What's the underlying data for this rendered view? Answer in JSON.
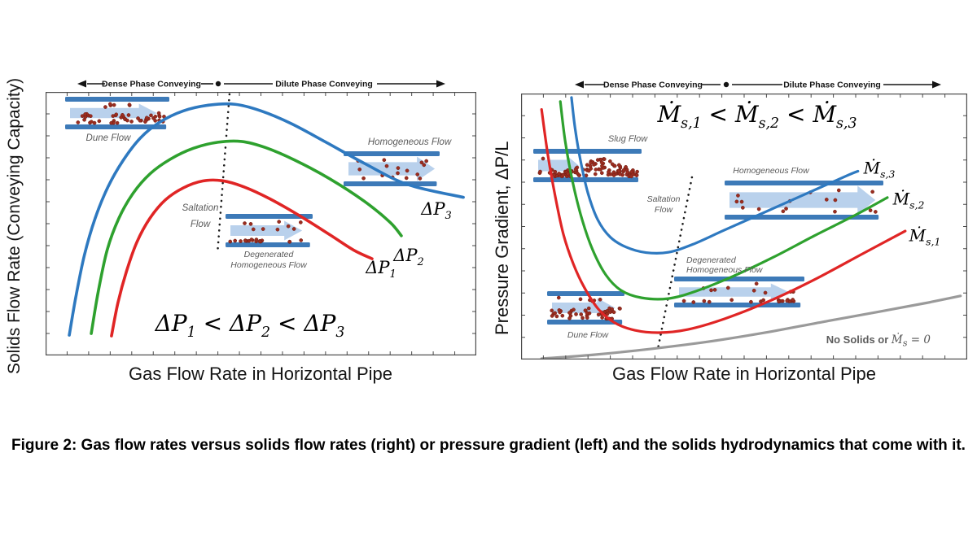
{
  "figure": {
    "caption": "Figure 2:  Gas flow rates versus solids flow rates (right) or pressure gradient (left) and the solids hydrodynamics that come with it."
  },
  "chart_data": [
    {
      "id": "left-solids-flow-rate-chart",
      "type": "line",
      "xlabel": "Gas Flow Rate in Horizontal Pipe",
      "ylabel": "Solids Flow Rate (Conveying Capacity)",
      "axis_style": "framed plot, short unlabeled tick marks on all four edges, qualitative axes (no numeric values)",
      "coords": "points are [x,y] normalized 0-100, y-up",
      "regions": {
        "left": "Dense Phase Conveying",
        "right": "Dilute Phase Conveying"
      },
      "annotation": "ΔP_{1} < ΔP_{2} < ΔP_{3}",
      "series": [
        {
          "name": "ΔP_{3}",
          "color": "#2e79c0",
          "points": [
            [
              5.5,
              7.7
            ],
            [
              7.0,
              22
            ],
            [
              9.0,
              38
            ],
            [
              11.5,
              52
            ],
            [
              14.5,
              64
            ],
            [
              18,
              74
            ],
            [
              22,
              82.5
            ],
            [
              26.5,
              88.5
            ],
            [
              32,
              92.8
            ],
            [
              38,
              95.0
            ],
            [
              44,
              95.3
            ],
            [
              50,
              92.8
            ],
            [
              57,
              88.0
            ],
            [
              65,
              81.0
            ],
            [
              74,
              72.9
            ],
            [
              84,
              64.9
            ],
            [
              97,
              60.0
            ]
          ]
        },
        {
          "name": "ΔP_{2}",
          "color": "#2ea12e",
          "points": [
            [
              10.6,
              8.3
            ],
            [
              12.2,
              24
            ],
            [
              14.3,
              40
            ],
            [
              17,
              52
            ],
            [
              20.3,
              61.5
            ],
            [
              24.3,
              69
            ],
            [
              29,
              74.5
            ],
            [
              34.3,
              78.6
            ],
            [
              40,
              80.9
            ],
            [
              45.5,
              81.2
            ],
            [
              51,
              78.9
            ],
            [
              58,
              74.0
            ],
            [
              66,
              67.0
            ],
            [
              74,
              58.5
            ],
            [
              80,
              50.5
            ],
            [
              82.6,
              45.4
            ]
          ]
        },
        {
          "name": "ΔP_{1}",
          "color": "#e02525",
          "points": [
            [
              15.3,
              7.4
            ],
            [
              16.8,
              20
            ],
            [
              18.8,
              32
            ],
            [
              21.2,
              43
            ],
            [
              24.2,
              52
            ],
            [
              27.8,
              59
            ],
            [
              32,
              63.6
            ],
            [
              36.5,
              66.2
            ],
            [
              41,
              66.3
            ],
            [
              46,
              64.0
            ],
            [
              52,
              59.5
            ],
            [
              59,
              53.0
            ],
            [
              66,
              45.8
            ],
            [
              71.5,
              40.0
            ],
            [
              75.8,
              36.7
            ]
          ]
        }
      ],
      "saltation_boundary": {
        "style": "dotted",
        "from": [
          42.7,
          99.1
        ],
        "to": [
          39.9,
          38.6
        ]
      },
      "labels": {
        "dune": "Dune Flow",
        "saltation_line1": "Saltation",
        "saltation_line2": "Flow",
        "degenerated_line1": "Degenerated",
        "degenerated_line2": "Homogeneous Flow",
        "homogeneous": "Homogeneous Flow"
      }
    },
    {
      "id": "right-pressure-gradient-chart",
      "type": "line",
      "xlabel": "Gas Flow Rate in Horizontal Pipe",
      "ylabel": "Pressure Gradient, ΔP/L",
      "axis_style": "framed plot, short unlabeled tick marks on all four edges, qualitative axes (no numeric values)",
      "coords": "points are [x,y] normalized 0-100, y-up",
      "regions": {
        "left": "Dense Phase Conveying",
        "right": "Dilute Phase Conveying"
      },
      "annotation": "Ṁ_{s,1} < Ṁ_{s,2} < Ṁ_{s,3}",
      "series": [
        {
          "name": "Ṁ_{s,3}",
          "color": "#2e79c0",
          "points": [
            [
              11.3,
              98.5
            ],
            [
              12.1,
              87
            ],
            [
              13.3,
              75
            ],
            [
              15.0,
              62.5
            ],
            [
              17.2,
              52.5
            ],
            [
              20,
              46
            ],
            [
              23.5,
              42.3
            ],
            [
              28,
              40.2
            ],
            [
              33,
              40.3
            ],
            [
              38.5,
              43.3
            ],
            [
              45.5,
              48.6
            ],
            [
              54.5,
              55.3
            ],
            [
              64,
              62.4
            ],
            [
              73,
              69.1
            ],
            [
              75.5,
              70.8
            ]
          ]
        },
        {
          "name": "Ṁ_{s,2}",
          "color": "#2ea12e",
          "points": [
            [
              8.8,
              97
            ],
            [
              9.9,
              82
            ],
            [
              11.6,
              66.5
            ],
            [
              13.7,
              52.5
            ],
            [
              16.1,
              41
            ],
            [
              19,
              31.8
            ],
            [
              22.4,
              26
            ],
            [
              27,
              23.2
            ],
            [
              33,
              22.9
            ],
            [
              39.2,
              25.7
            ],
            [
              47.4,
              31.2
            ],
            [
              56.6,
              38.5
            ],
            [
              65.7,
              46.5
            ],
            [
              74.8,
              54.2
            ],
            [
              82.1,
              60.9
            ]
          ]
        },
        {
          "name": "Ṁ_{s,1}",
          "color": "#e02525",
          "points": [
            [
              4.6,
              94
            ],
            [
              6.0,
              77
            ],
            [
              7.7,
              61
            ],
            [
              9.5,
              47
            ],
            [
              11.7,
              36
            ],
            [
              14.2,
              27
            ],
            [
              17.3,
              19
            ],
            [
              21,
              13.8
            ],
            [
              25.5,
              11
            ],
            [
              31,
              10.1
            ],
            [
              37.4,
              11.3
            ],
            [
              45.6,
              15.3
            ],
            [
              55.7,
              22
            ],
            [
              65.7,
              30
            ],
            [
              76.6,
              39.8
            ],
            [
              86.1,
              48.3
            ]
          ]
        },
        {
          "name": "No Solids or Ṁ_{s} = 0",
          "color": "#9a9a9a",
          "points": [
            [
              4.6,
              0.3
            ],
            [
              16.4,
              1.8
            ],
            [
              29.2,
              4
            ],
            [
              42,
              6.7
            ],
            [
              54.7,
              10.1
            ],
            [
              67.5,
              14.1
            ],
            [
              80.3,
              18
            ],
            [
              90.3,
              21.1
            ],
            [
              98.5,
              23.9
            ]
          ]
        }
      ],
      "saltation_boundary": {
        "style": "dotted",
        "from": [
          38.3,
          68.5
        ],
        "to": [
          30.7,
          4.3
        ]
      },
      "labels": {
        "slug": "Slug Flow",
        "saltation_line1": "Saltation",
        "saltation_line2": "Flow",
        "degenerated_line1": "Degenerated",
        "degenerated_line2": "Homogeneous Flow",
        "homogeneous": "Homogeneous Flow",
        "dune": "Dune Flow",
        "no_solids_prefix": "No Solids or ",
        "no_solids_math": "Ṁ_{s} = 0"
      }
    }
  ]
}
